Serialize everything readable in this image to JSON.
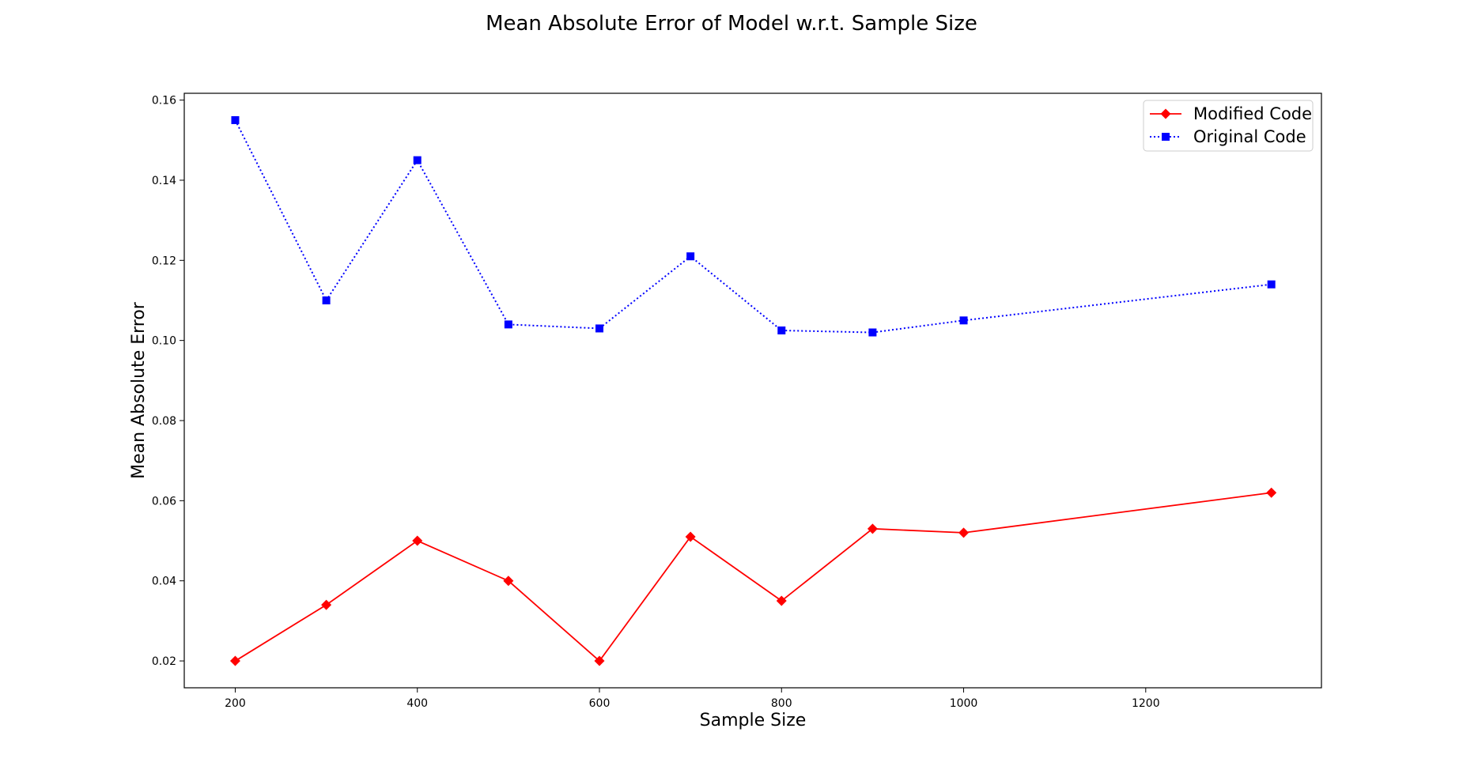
{
  "chart_data": {
    "type": "line",
    "title": "Mean Absolute Error of Model w.r.t. Sample Size",
    "xlabel": "Sample Size",
    "ylabel": "Mean Absolute Error",
    "xlim": [
      144,
      1393
    ],
    "ylim": [
      0.0133,
      0.1617
    ],
    "xticks": [
      200,
      400,
      600,
      800,
      1000,
      1200
    ],
    "xtick_labels": [
      "200",
      "400",
      "600",
      "800",
      "1000",
      "1200"
    ],
    "yticks": [
      0.02,
      0.04,
      0.06,
      0.08,
      0.1,
      0.12,
      0.14,
      0.16
    ],
    "ytick_labels": [
      "0.02",
      "0.04",
      "0.06",
      "0.08",
      "0.10",
      "0.12",
      "0.14",
      "0.16"
    ],
    "grid": false,
    "legend_position": "top-right",
    "x": [
      200,
      300,
      400,
      500,
      600,
      700,
      800,
      900,
      1000,
      1338
    ],
    "series": [
      {
        "name": "Modified Code",
        "color": "#ff0000",
        "line_style": "solid",
        "marker": "diamond",
        "values": [
          0.02,
          0.034,
          0.05,
          0.04,
          0.02,
          0.051,
          0.035,
          0.053,
          0.052,
          0.062
        ]
      },
      {
        "name": "Original Code",
        "color": "#0000ff",
        "line_style": "dotted",
        "marker": "square",
        "values": [
          0.155,
          0.11,
          0.145,
          0.104,
          0.103,
          0.121,
          0.1025,
          0.102,
          0.105,
          0.114
        ]
      }
    ]
  }
}
